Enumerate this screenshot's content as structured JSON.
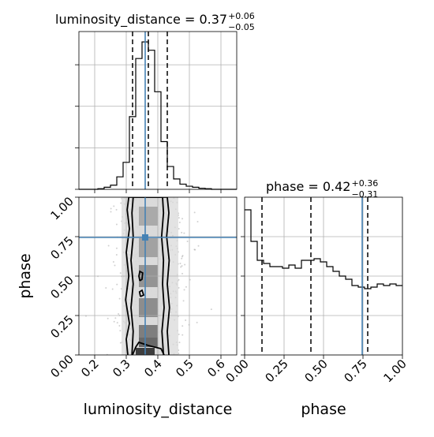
{
  "chart_data": {
    "type": "corner",
    "parameters": [
      "luminosity_distance",
      "phase"
    ],
    "titles": [
      {
        "param": "luminosity_distance",
        "text": "luminosity_distance = 0.37",
        "plus": "+0.06",
        "minus": "−0.05"
      },
      {
        "param": "phase",
        "text": "phase = 0.42",
        "plus": "+0.36",
        "minus": "−0.31"
      }
    ],
    "truth": {
      "luminosity_distance": 0.36,
      "phase": 0.745,
      "color": "#4682b4"
    },
    "quantiles": {
      "luminosity_distance": [
        0.32,
        0.37,
        0.43
      ],
      "phase": [
        0.11,
        0.42,
        0.78
      ]
    },
    "luminosity_distance_marginal": {
      "xlim": [
        0.15,
        0.65
      ],
      "bin_edges": [
        0.15,
        0.17,
        0.19,
        0.21,
        0.23,
        0.25,
        0.27,
        0.29,
        0.31,
        0.33,
        0.35,
        0.37,
        0.39,
        0.41,
        0.43,
        0.45,
        0.47,
        0.49,
        0.51,
        0.53,
        0.55,
        0.57,
        0.59,
        0.61,
        0.63,
        0.65
      ],
      "counts": [
        0,
        0,
        0,
        0.3,
        1,
        2,
        6,
        13,
        35,
        63,
        71,
        67,
        47,
        23,
        11,
        5,
        2.5,
        1.5,
        1,
        0.5,
        0.3,
        0,
        0,
        0,
        0
      ],
      "ymax": 76
    },
    "phase_marginal": {
      "xlim": [
        0.0,
        1.0
      ],
      "bin_edges": [
        0.0,
        0.04,
        0.08,
        0.12,
        0.16,
        0.2,
        0.24,
        0.28,
        0.32,
        0.36,
        0.4,
        0.44,
        0.48,
        0.52,
        0.56,
        0.6,
        0.64,
        0.68,
        0.72,
        0.76,
        0.8,
        0.84,
        0.88,
        0.92,
        0.96,
        1.0
      ],
      "counts": [
        92,
        72,
        60,
        58,
        56,
        56,
        55,
        57,
        55,
        60,
        60,
        61,
        59,
        56,
        53,
        50,
        48,
        44,
        43,
        42,
        43,
        45,
        44,
        45,
        44
      ],
      "ymax": 100
    },
    "joint": {
      "xlim": [
        0.15,
        0.65
      ],
      "ylim": [
        0.0,
        1.0
      ],
      "cells": [
        {
          "x": 0.36,
          "y": 0.02,
          "w": 0.06,
          "h": 0.05,
          "density": 1.0
        },
        {
          "x": 0.37,
          "y": 0.08,
          "w": 0.06,
          "h": 0.06,
          "density": 0.7
        },
        {
          "x": 0.37,
          "y": 0.15,
          "w": 0.06,
          "h": 0.08,
          "density": 0.55
        },
        {
          "x": 0.37,
          "y": 0.3,
          "w": 0.06,
          "h": 0.12,
          "density": 0.45
        },
        {
          "x": 0.37,
          "y": 0.5,
          "w": 0.06,
          "h": 0.14,
          "density": 0.4
        },
        {
          "x": 0.37,
          "y": 0.68,
          "w": 0.06,
          "h": 0.12,
          "density": 0.3
        },
        {
          "x": 0.37,
          "y": 0.88,
          "w": 0.06,
          "h": 0.12,
          "density": 0.25
        }
      ],
      "contours": [
        [
          [
            0.318,
            0
          ],
          [
            0.322,
            0.15
          ],
          [
            0.315,
            0.3
          ],
          [
            0.322,
            0.45
          ],
          [
            0.315,
            0.6
          ],
          [
            0.322,
            0.75
          ],
          [
            0.318,
            0.9
          ],
          [
            0.322,
            1.0
          ],
          [
            0.415,
            1.0
          ],
          [
            0.418,
            0.9
          ],
          [
            0.412,
            0.75
          ],
          [
            0.418,
            0.6
          ],
          [
            0.415,
            0.45
          ],
          [
            0.42,
            0.3
          ],
          [
            0.413,
            0.15
          ],
          [
            0.418,
            0
          ]
        ],
        [
          [
            0.305,
            0
          ],
          [
            0.3,
            0.1
          ],
          [
            0.31,
            0.2
          ],
          [
            0.298,
            0.35
          ],
          [
            0.308,
            0.5
          ],
          [
            0.3,
            0.65
          ],
          [
            0.31,
            0.8
          ],
          [
            0.303,
            0.92
          ],
          [
            0.308,
            1.0
          ],
          [
            0.43,
            1.0
          ],
          [
            0.435,
            0.9
          ],
          [
            0.428,
            0.75
          ],
          [
            0.436,
            0.6
          ],
          [
            0.43,
            0.45
          ],
          [
            0.437,
            0.3
          ],
          [
            0.43,
            0.15
          ],
          [
            0.435,
            0
          ]
        ],
        [
          [
            0.345,
            0.37
          ],
          [
            0.342,
            0.4
          ],
          [
            0.35,
            0.41
          ],
          [
            0.355,
            0.38
          ],
          [
            0.345,
            0.37
          ]
        ],
        [
          [
            0.343,
            0.47
          ],
          [
            0.34,
            0.5
          ],
          [
            0.343,
            0.53
          ],
          [
            0.352,
            0.52
          ],
          [
            0.35,
            0.48
          ],
          [
            0.343,
            0.47
          ]
        ],
        [
          [
            0.32,
            0
          ],
          [
            0.33,
            0.05
          ],
          [
            0.34,
            0.08
          ],
          [
            0.37,
            0.06
          ],
          [
            0.41,
            0.04
          ],
          [
            0.42,
            0
          ]
        ]
      ],
      "scatter_count": 900
    },
    "axes": {
      "luminosity_distance": {
        "label": "luminosity_distance",
        "ticks": [
          0.2,
          0.3,
          0.4,
          0.5,
          0.6
        ],
        "tick_labels": [
          "0.2",
          "0.3",
          "0.4",
          "0.5",
          "0.6"
        ]
      },
      "phase": {
        "label": "phase",
        "ticks": [
          0.0,
          0.25,
          0.5,
          0.75,
          1.0
        ],
        "tick_labels": [
          "0.00",
          "0.25",
          "0.50",
          "0.75",
          "1.00"
        ]
      }
    },
    "grid": true
  }
}
